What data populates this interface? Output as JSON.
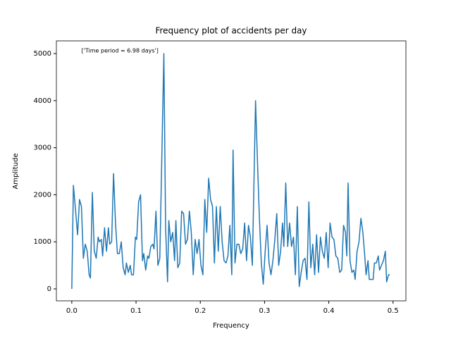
{
  "chart_data": {
    "type": "line",
    "title": "Frequency plot of accidents per day",
    "xlabel": "Frequency",
    "ylabel": "Amplitude",
    "annotation": "['Time period = 6.98 days']",
    "annotation_xy": [
      0.015,
      5000
    ],
    "color": "#1f77b4",
    "xlim": [
      -0.024,
      0.52
    ],
    "ylim": [
      -254,
      5270
    ],
    "xticks": [
      {
        "value": 0,
        "label": "0.0"
      },
      0.1,
      0.2,
      0.3,
      0.4,
      0.5
    ],
    "yticks": [
      0,
      1000,
      2000,
      3000,
      4000,
      5000
    ],
    "x": [
      0,
      0.0025,
      0.006,
      0.009,
      0.012,
      0.015,
      0.018,
      0.021,
      0.024,
      0.027,
      0.029,
      0.032,
      0.035,
      0.038,
      0.041,
      0.043,
      0.046,
      0.048,
      0.051,
      0.054,
      0.057,
      0.059,
      0.062,
      0.065,
      0.068,
      0.071,
      0.074,
      0.077,
      0.08,
      0.083,
      0.085,
      0.088,
      0.091,
      0.093,
      0.096,
      0.099,
      0.101,
      0.104,
      0.107,
      0.11,
      0.112,
      0.115,
      0.118,
      0.12,
      0.123,
      0.126,
      0.128,
      0.131,
      0.134,
      0.137,
      0.1433,
      0.146,
      0.149,
      0.151,
      0.154,
      0.157,
      0.16,
      0.162,
      0.165,
      0.168,
      0.171,
      0.174,
      0.177,
      0.18,
      0.183,
      0.186,
      0.189,
      0.192,
      0.195,
      0.198,
      0.201,
      0.204,
      0.207,
      0.21,
      0.213,
      0.216,
      0.219,
      0.222,
      0.225,
      0.228,
      0.231,
      0.234,
      0.237,
      0.24,
      0.243,
      0.246,
      0.249,
      0.251,
      0.254,
      0.257,
      0.26,
      0.263,
      0.266,
      0.269,
      0.272,
      0.275,
      0.278,
      0.281,
      0.286,
      0.289,
      0.292,
      0.295,
      0.298,
      0.301,
      0.304,
      0.307,
      0.31,
      0.313,
      0.316,
      0.319,
      0.322,
      0.325,
      0.328,
      0.33,
      0.333,
      0.336,
      0.339,
      0.342,
      0.345,
      0.348,
      0.351,
      0.354,
      0.357,
      0.36,
      0.363,
      0.366,
      0.369,
      0.372,
      0.375,
      0.378,
      0.381,
      0.384,
      0.387,
      0.39,
      0.393,
      0.396,
      0.399,
      0.402,
      0.405,
      0.408,
      0.411,
      0.414,
      0.417,
      0.42,
      0.423,
      0.426,
      0.428,
      0.43,
      0.433,
      0.436,
      0.439,
      0.441,
      0.444,
      0.447,
      0.45,
      0.453,
      0.456,
      0.458,
      0.461,
      0.463,
      0.466,
      0.469,
      0.471,
      0.474,
      0.477,
      0.479,
      0.482,
      0.485,
      0.488,
      0.49,
      0.493,
      0.495
    ],
    "values": [
      0,
      2200,
      1650,
      1150,
      1900,
      1750,
      650,
      950,
      800,
      300,
      230,
      2050,
      800,
      650,
      1100,
      1000,
      1050,
      700,
      1300,
      800,
      1300,
      950,
      1000,
      2450,
      1400,
      750,
      750,
      1000,
      450,
      300,
      550,
      350,
      500,
      300,
      300,
      1100,
      1050,
      1850,
      2000,
      600,
      750,
      400,
      700,
      650,
      900,
      950,
      850,
      1650,
      500,
      650,
      5000,
      1300,
      150,
      1450,
      1000,
      1200,
      600,
      1450,
      450,
      550,
      1650,
      1600,
      950,
      1050,
      1650,
      1200,
      300,
      1050,
      750,
      1050,
      500,
      300,
      1900,
      1200,
      2350,
      1900,
      1750,
      550,
      1750,
      800,
      1750,
      1000,
      600,
      550,
      700,
      1350,
      300,
      2950,
      550,
      950,
      950,
      750,
      850,
      1400,
      600,
      1350,
      1100,
      500,
      4000,
      2700,
      1500,
      550,
      100,
      800,
      1350,
      550,
      300,
      600,
      1050,
      1600,
      500,
      800,
      1400,
      900,
      2250,
      900,
      1400,
      900,
      1100,
      300,
      1750,
      50,
      350,
      600,
      650,
      200,
      1850,
      450,
      950,
      300,
      1150,
      350,
      1100,
      800,
      650,
      1200,
      450,
      1400,
      1100,
      1050,
      700,
      650,
      350,
      400,
      1350,
      1200,
      700,
      2250,
      600,
      350,
      400,
      200,
      800,
      1000,
      1500,
      1200,
      700,
      300,
      600,
      200,
      200,
      200,
      550,
      550,
      700,
      400,
      500,
      600,
      800,
      150,
      300,
      300
    ]
  }
}
